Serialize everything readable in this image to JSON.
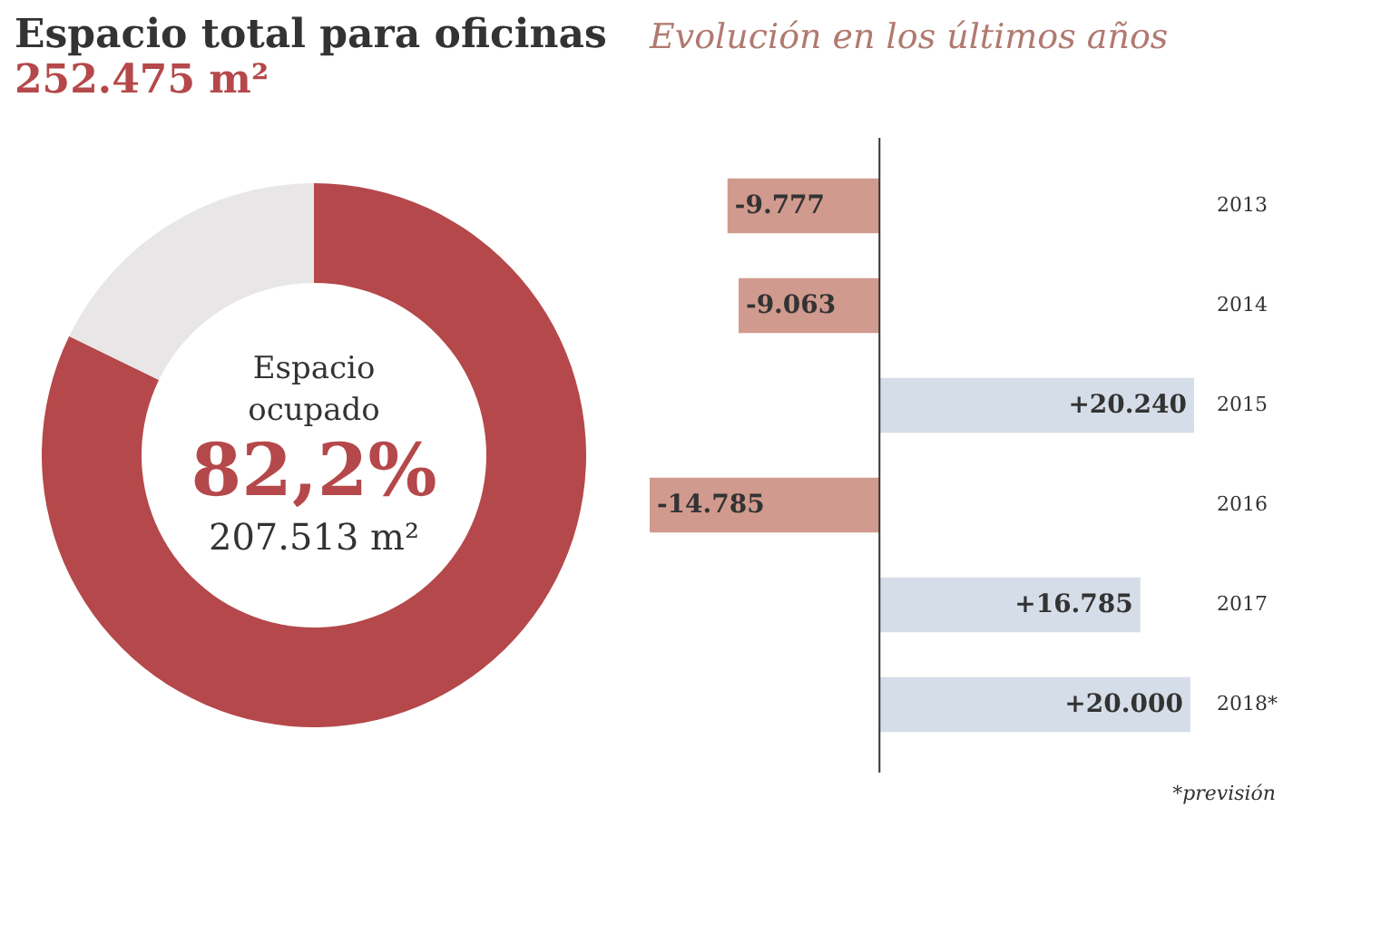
{
  "chart_data": [
    {
      "type": "donut",
      "title": "Espacio total para oficinas",
      "subtitle": "252.475 m²",
      "categories": [
        "Espacio ocupado",
        null
      ],
      "values": [
        82.2,
        17.8
      ],
      "colors": [
        "#b5484a",
        "#e8e6e6"
      ],
      "value_labels": [
        "82,2%",
        null
      ],
      "annotations": [
        "207.513 m²"
      ]
    },
    {
      "type": "bar",
      "orientation": "horizontal",
      "title": "Evolución en los últimos años",
      "categories": [
        "2013",
        "2014",
        "2015",
        "2016",
        "2017",
        "2018*"
      ],
      "values": [
        -9777,
        -9063,
        20240,
        -14785,
        16785,
        20000
      ],
      "colors": [
        "#d19a8e",
        "#d19a8e",
        "#d5dde8",
        "#d19a8e",
        "#d5dde8",
        "#d5dde8"
      ],
      "value_labels": [
        "-9.777",
        "-9.063",
        "+20.240",
        "-14.785",
        "+16.785",
        "+20.000"
      ],
      "annotations": [
        "*previsión"
      ],
      "grid": false
    }
  ]
}
